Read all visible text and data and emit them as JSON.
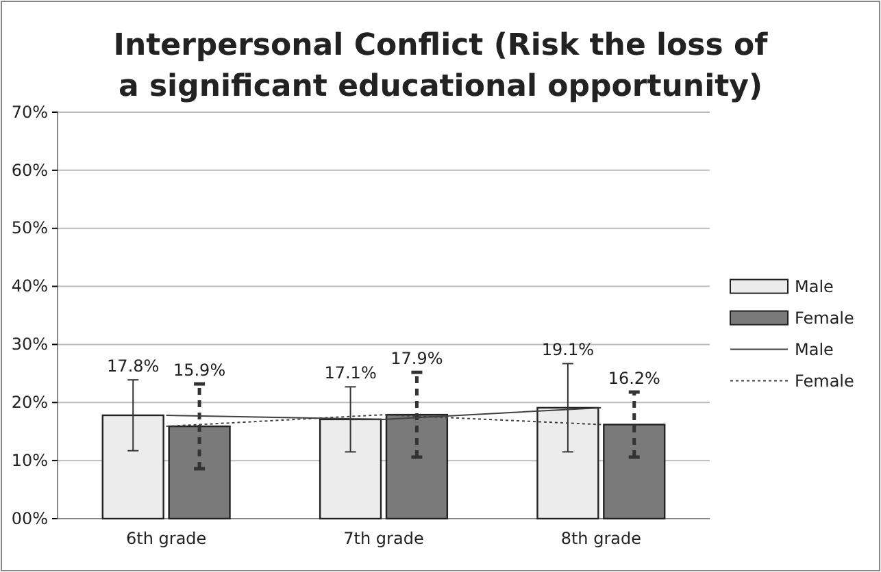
{
  "chart_data": {
    "type": "bar",
    "title": "Interpersonal Conflict (Risk the loss of a significant educational opportunity)",
    "categories": [
      "6th grade",
      "7th grade",
      "8th grade"
    ],
    "series": [
      {
        "name": "Male",
        "type": "bar",
        "color": "#ececec",
        "values": [
          17.8,
          17.1,
          19.1
        ],
        "errors": [
          6.1,
          5.6,
          7.6
        ],
        "value_labels": [
          "17.8%",
          "17.1%",
          "19.1%"
        ]
      },
      {
        "name": "Female",
        "type": "bar",
        "color": "#7a7a7a",
        "values": [
          15.9,
          17.9,
          16.2
        ],
        "errors": [
          7.3,
          7.3,
          5.6
        ],
        "value_labels": [
          "15.9%",
          "17.9%",
          "16.2%"
        ]
      },
      {
        "name": "Male",
        "type": "line",
        "color": "#404040",
        "line_style": "solid",
        "values": [
          17.8,
          17.1,
          19.1
        ]
      },
      {
        "name": "Female",
        "type": "line",
        "color": "#404040",
        "line_style": "dotted",
        "values": [
          15.9,
          17.9,
          16.2
        ]
      }
    ],
    "ylim": [
      0,
      70
    ],
    "yticks": [
      {
        "value": 0,
        "label": "00%"
      },
      {
        "value": 10,
        "label": "10%"
      },
      {
        "value": 20,
        "label": "20%"
      },
      {
        "value": 30,
        "label": "30%"
      },
      {
        "value": 40,
        "label": "40%"
      },
      {
        "value": 50,
        "label": "50%"
      },
      {
        "value": 60,
        "label": "60%"
      },
      {
        "value": 70,
        "label": "70%"
      }
    ],
    "grid": "y",
    "legend": "right"
  }
}
